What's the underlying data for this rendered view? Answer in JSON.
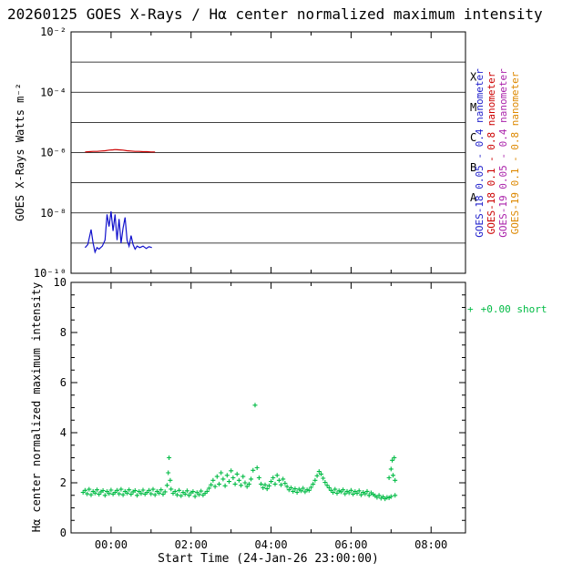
{
  "title": "20260125 GOES X-Rays / Hα center normalized maximum intensity",
  "top_panel": {
    "ylabel": "GOES X-Rays Watts m⁻²",
    "yticks": [
      {
        "exp": -2,
        "label": "10⁻²"
      },
      {
        "exp": -4,
        "label": "10⁻⁴"
      },
      {
        "exp": -6,
        "label": "10⁻⁶"
      },
      {
        "exp": -8,
        "label": "10⁻⁸"
      },
      {
        "exp": -10,
        "label": "10⁻¹⁰"
      }
    ],
    "grid_exponents": [
      -3,
      -4,
      -5,
      -6,
      -7,
      -8,
      -9
    ],
    "ylim_exponents": [
      -10,
      -2
    ],
    "flare_classes": [
      {
        "label": "X",
        "exp": -3.5
      },
      {
        "label": "M",
        "exp": -4.5
      },
      {
        "label": "C",
        "exp": -5.5
      },
      {
        "label": "B",
        "exp": -6.5
      },
      {
        "label": "A",
        "exp": -7.5
      }
    ],
    "legend_entries": [
      {
        "label": "GOES-18 0.05 - 0.4 nanometer",
        "color": "#2222cc"
      },
      {
        "label": "GOES-18 0.1 - 0.8 nanometer",
        "color": "#cc0000"
      },
      {
        "label": "GOES-19 0.05 - 0.4 nanometer",
        "color": "#aa22aa"
      },
      {
        "label": "GOES-19 0.1 - 0.8 nanometer",
        "color": "#dd8800"
      }
    ]
  },
  "bottom_panel": {
    "ylabel": "Hα center normalized maximum intensity",
    "xlabel": "Start Time (24-Jan-26 23:00:00)",
    "yticks": [
      0,
      2,
      4,
      6,
      8,
      10
    ],
    "ylim": [
      0,
      10
    ],
    "xticks": [
      {
        "t": 1,
        "label": "00:00"
      },
      {
        "t": 3,
        "label": "02:00"
      },
      {
        "t": 5,
        "label": "04:00"
      },
      {
        "t": 7,
        "label": "06:00"
      },
      {
        "t": 9,
        "label": "08:00"
      }
    ],
    "legend": {
      "marker": "+",
      "label": "+0.00 short",
      "color": "#00bb44"
    }
  },
  "chart_data": [
    {
      "type": "line",
      "panel": "top",
      "x_unit": "hours after 24-Jan-26 23:00",
      "y_unit": "log10(Watts m^-2)",
      "xlim": [
        0,
        9.86
      ],
      "ylim_exponents": [
        -10,
        -2
      ],
      "series": [
        {
          "name": "GOES-18 0.05 - 0.4 nanometer",
          "color": "#1111cc",
          "points": [
            [
              0.35,
              -9.15
            ],
            [
              0.42,
              -9.05
            ],
            [
              0.5,
              -8.55
            ],
            [
              0.55,
              -9.0
            ],
            [
              0.6,
              -9.3
            ],
            [
              0.65,
              -9.15
            ],
            [
              0.7,
              -9.2
            ],
            [
              0.78,
              -9.1
            ],
            [
              0.85,
              -8.9
            ],
            [
              0.9,
              -8.05
            ],
            [
              0.95,
              -8.45
            ],
            [
              1.0,
              -7.95
            ],
            [
              1.05,
              -8.6
            ],
            [
              1.1,
              -8.05
            ],
            [
              1.15,
              -8.9
            ],
            [
              1.2,
              -8.2
            ],
            [
              1.25,
              -9.0
            ],
            [
              1.3,
              -8.5
            ],
            [
              1.35,
              -8.15
            ],
            [
              1.4,
              -8.9
            ],
            [
              1.45,
              -9.1
            ],
            [
              1.5,
              -8.75
            ],
            [
              1.55,
              -9.05
            ],
            [
              1.6,
              -9.2
            ],
            [
              1.65,
              -9.1
            ],
            [
              1.72,
              -9.15
            ],
            [
              1.8,
              -9.1
            ],
            [
              1.88,
              -9.18
            ],
            [
              1.95,
              -9.12
            ],
            [
              2.02,
              -9.15
            ]
          ]
        },
        {
          "name": "GOES-18 0.1 - 0.8 nanometer",
          "color": "#cc0000",
          "points": [
            [
              0.35,
              -5.98
            ],
            [
              0.45,
              -5.97
            ],
            [
              0.55,
              -5.96
            ],
            [
              0.65,
              -5.96
            ],
            [
              0.75,
              -5.95
            ],
            [
              0.85,
              -5.94
            ],
            [
              0.95,
              -5.92
            ],
            [
              1.05,
              -5.91
            ],
            [
              1.1,
              -5.9
            ],
            [
              1.2,
              -5.91
            ],
            [
              1.3,
              -5.92
            ],
            [
              1.4,
              -5.94
            ],
            [
              1.5,
              -5.95
            ],
            [
              1.6,
              -5.96
            ],
            [
              1.7,
              -5.96
            ],
            [
              1.8,
              -5.97
            ],
            [
              1.9,
              -5.97
            ],
            [
              2.0,
              -5.98
            ],
            [
              2.1,
              -5.98
            ]
          ]
        }
      ]
    },
    {
      "type": "scatter",
      "panel": "bottom",
      "marker": "+",
      "name": "Hα center normalized maximum intensity",
      "color": "#00bb44",
      "x_unit": "hours after 24-Jan-26 23:00",
      "xlim": [
        0,
        9.86
      ],
      "ylim": [
        0,
        10
      ],
      "points": [
        [
          0.3,
          1.62
        ],
        [
          0.35,
          1.7
        ],
        [
          0.4,
          1.56
        ],
        [
          0.45,
          1.74
        ],
        [
          0.5,
          1.52
        ],
        [
          0.55,
          1.66
        ],
        [
          0.6,
          1.59
        ],
        [
          0.65,
          1.72
        ],
        [
          0.7,
          1.54
        ],
        [
          0.75,
          1.64
        ],
        [
          0.8,
          1.69
        ],
        [
          0.85,
          1.5
        ],
        [
          0.9,
          1.65
        ],
        [
          0.95,
          1.57
        ],
        [
          1.0,
          1.71
        ],
        [
          1.05,
          1.55
        ],
        [
          1.1,
          1.62
        ],
        [
          1.15,
          1.7
        ],
        [
          1.2,
          1.56
        ],
        [
          1.25,
          1.74
        ],
        [
          1.3,
          1.52
        ],
        [
          1.35,
          1.66
        ],
        [
          1.4,
          1.59
        ],
        [
          1.45,
          1.72
        ],
        [
          1.5,
          1.54
        ],
        [
          1.55,
          1.64
        ],
        [
          1.6,
          1.69
        ],
        [
          1.65,
          1.5
        ],
        [
          1.7,
          1.65
        ],
        [
          1.75,
          1.57
        ],
        [
          1.8,
          1.71
        ],
        [
          1.85,
          1.55
        ],
        [
          1.9,
          1.62
        ],
        [
          1.95,
          1.7
        ],
        [
          2.0,
          1.56
        ],
        [
          2.05,
          1.74
        ],
        [
          2.1,
          1.52
        ],
        [
          2.15,
          1.66
        ],
        [
          2.2,
          1.59
        ],
        [
          2.25,
          1.72
        ],
        [
          2.3,
          1.54
        ],
        [
          2.35,
          1.64
        ],
        [
          2.4,
          1.9
        ],
        [
          2.43,
          2.4
        ],
        [
          2.45,
          3.0
        ],
        [
          2.48,
          2.1
        ],
        [
          2.5,
          1.75
        ],
        [
          2.55,
          1.58
        ],
        [
          2.6,
          1.66
        ],
        [
          2.65,
          1.52
        ],
        [
          2.7,
          1.7
        ],
        [
          2.75,
          1.48
        ],
        [
          2.8,
          1.62
        ],
        [
          2.85,
          1.55
        ],
        [
          2.9,
          1.68
        ],
        [
          2.95,
          1.5
        ],
        [
          3.0,
          1.6
        ],
        [
          3.05,
          1.65
        ],
        [
          3.1,
          1.46
        ],
        [
          3.15,
          1.61
        ],
        [
          3.2,
          1.53
        ],
        [
          3.25,
          1.67
        ],
        [
          3.3,
          1.51
        ],
        [
          3.35,
          1.58
        ],
        [
          3.4,
          1.66
        ],
        [
          3.45,
          1.78
        ],
        [
          3.5,
          1.92
        ],
        [
          3.55,
          2.1
        ],
        [
          3.6,
          1.85
        ],
        [
          3.65,
          2.25
        ],
        [
          3.7,
          1.95
        ],
        [
          3.75,
          2.4
        ],
        [
          3.8,
          2.15
        ],
        [
          3.85,
          1.88
        ],
        [
          3.9,
          2.3
        ],
        [
          3.95,
          2.05
        ],
        [
          4.0,
          2.48
        ],
        [
          4.05,
          2.2
        ],
        [
          4.1,
          1.95
        ],
        [
          4.15,
          2.35
        ],
        [
          4.2,
          2.1
        ],
        [
          4.25,
          1.9
        ],
        [
          4.3,
          2.25
        ],
        [
          4.35,
          2.0
        ],
        [
          4.4,
          1.85
        ],
        [
          4.45,
          1.95
        ],
        [
          4.5,
          2.15
        ],
        [
          4.55,
          2.5
        ],
        [
          4.6,
          5.1
        ],
        [
          4.65,
          2.6
        ],
        [
          4.7,
          2.2
        ],
        [
          4.75,
          1.95
        ],
        [
          4.8,
          1.8
        ],
        [
          4.85,
          1.92
        ],
        [
          4.9,
          1.76
        ],
        [
          4.95,
          1.88
        ],
        [
          5.0,
          2.05
        ],
        [
          5.05,
          2.2
        ],
        [
          5.1,
          1.95
        ],
        [
          5.15,
          2.3
        ],
        [
          5.2,
          2.1
        ],
        [
          5.25,
          1.92
        ],
        [
          5.3,
          2.15
        ],
        [
          5.35,
          1.98
        ],
        [
          5.4,
          1.85
        ],
        [
          5.45,
          1.72
        ],
        [
          5.5,
          1.8
        ],
        [
          5.55,
          1.66
        ],
        [
          5.6,
          1.76
        ],
        [
          5.65,
          1.62
        ],
        [
          5.7,
          1.74
        ],
        [
          5.75,
          1.68
        ],
        [
          5.8,
          1.78
        ],
        [
          5.85,
          1.64
        ],
        [
          5.9,
          1.72
        ],
        [
          5.95,
          1.7
        ],
        [
          6.0,
          1.82
        ],
        [
          6.05,
          1.95
        ],
        [
          6.1,
          2.1
        ],
        [
          6.15,
          2.28
        ],
        [
          6.2,
          2.45
        ],
        [
          6.25,
          2.35
        ],
        [
          6.3,
          2.18
        ],
        [
          6.35,
          2.02
        ],
        [
          6.4,
          1.9
        ],
        [
          6.45,
          1.8
        ],
        [
          6.5,
          1.7
        ],
        [
          6.55,
          1.62
        ],
        [
          6.6,
          1.74
        ],
        [
          6.65,
          1.58
        ],
        [
          6.7,
          1.68
        ],
        [
          6.75,
          1.64
        ],
        [
          6.8,
          1.72
        ],
        [
          6.85,
          1.56
        ],
        [
          6.9,
          1.66
        ],
        [
          6.95,
          1.6
        ],
        [
          7.0,
          1.7
        ],
        [
          7.05,
          1.55
        ],
        [
          7.1,
          1.65
        ],
        [
          7.15,
          1.58
        ],
        [
          7.2,
          1.68
        ],
        [
          7.25,
          1.52
        ],
        [
          7.3,
          1.62
        ],
        [
          7.35,
          1.56
        ],
        [
          7.4,
          1.66
        ],
        [
          7.45,
          1.5
        ],
        [
          7.5,
          1.6
        ],
        [
          7.55,
          1.54
        ],
        [
          7.6,
          1.48
        ],
        [
          7.65,
          1.42
        ],
        [
          7.7,
          1.5
        ],
        [
          7.75,
          1.38
        ],
        [
          7.8,
          1.44
        ],
        [
          7.85,
          1.36
        ],
        [
          7.9,
          1.42
        ],
        [
          7.95,
          1.4
        ],
        [
          7.95,
          2.2
        ],
        [
          8.0,
          1.45
        ],
        [
          8.0,
          2.55
        ],
        [
          8.03,
          2.9
        ],
        [
          8.05,
          2.3
        ],
        [
          8.08,
          3.0
        ],
        [
          8.1,
          1.5
        ],
        [
          8.1,
          2.1
        ]
      ]
    }
  ]
}
